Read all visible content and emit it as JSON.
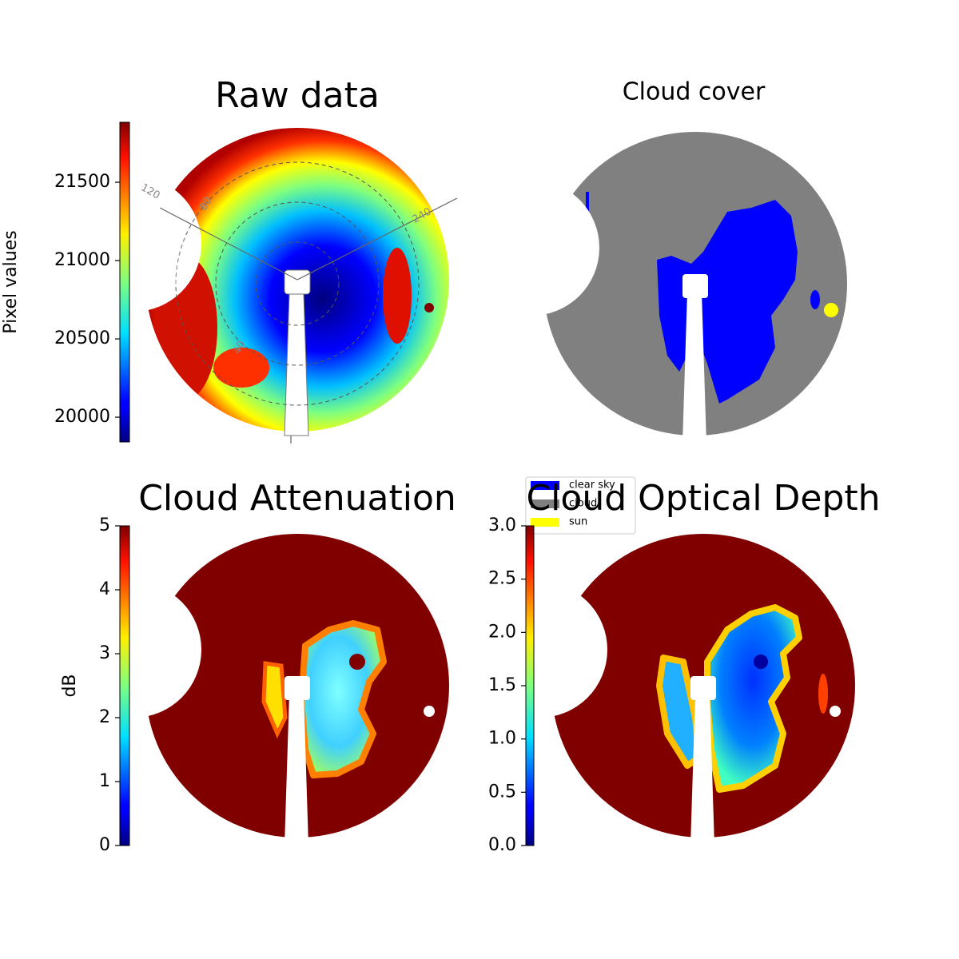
{
  "chart_data": [
    {
      "type": "image",
      "title": "Raw data",
      "colormap": "jet",
      "ylabel": "Pixel values",
      "ylim": [
        19842,
        21883
      ],
      "yticks": [
        20000,
        20500,
        21000,
        21500
      ],
      "annotations": [
        "120",
        "80",
        "240",
        "40"
      ]
    },
    {
      "type": "image",
      "title": "Cloud cover",
      "series": [
        {
          "name": "clear sky",
          "color": "#0000ff"
        },
        {
          "name": "cloud",
          "color": "#808080"
        },
        {
          "name": "sun",
          "color": "#ffff00"
        }
      ]
    },
    {
      "type": "image",
      "title": "Cloud Attenuation",
      "colormap": "jet",
      "ylabel": "dB",
      "ylim": [
        0,
        5
      ],
      "yticks": [
        0,
        1,
        2,
        3,
        4,
        5
      ]
    },
    {
      "type": "image",
      "title": "Cloud Optical Depth",
      "colormap": "jet",
      "ylim": [
        0,
        3
      ],
      "yticks": [
        {
          "value": 0,
          "label": "0.0"
        },
        0.5,
        {
          "value": 1,
          "label": "1.0"
        },
        1.5,
        {
          "value": 2,
          "label": "2.0"
        },
        2.5,
        {
          "value": 3,
          "label": "3.0"
        }
      ]
    }
  ]
}
